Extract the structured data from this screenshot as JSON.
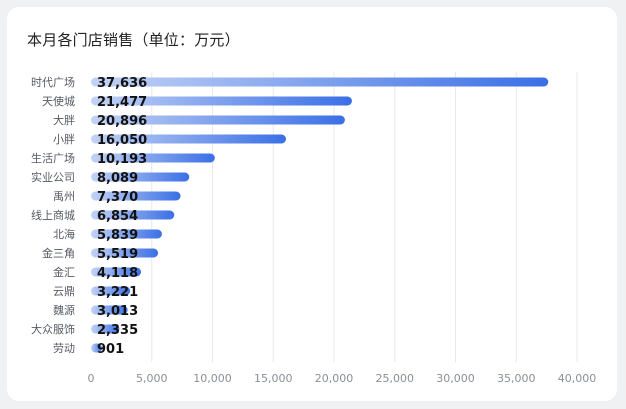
{
  "title": "本月各门店销售（单位：万元）",
  "chart_data": {
    "type": "bar",
    "orientation": "horizontal",
    "title": "本月各门店销售（单位：万元）",
    "xlabel": "",
    "ylabel": "",
    "xlim": [
      0,
      40000
    ],
    "x_ticks": [
      "0",
      "5,000",
      "10,000",
      "15,000",
      "20,000",
      "25,000",
      "30,000",
      "35,000",
      "40,000"
    ],
    "grid": "vertical",
    "legend": "none",
    "categories": [
      "时代广场",
      "天使城",
      "大胖",
      "小胖",
      "生活广场",
      "实业公司",
      "禹州",
      "线上商城",
      "北海",
      "金三角",
      "金汇",
      "云鼎",
      "魏源",
      "大众服饰",
      "劳动"
    ],
    "values": [
      37636,
      21477,
      20896,
      16050,
      10193,
      8089,
      7370,
      6854,
      5839,
      5519,
      4118,
      3221,
      3013,
      2335,
      901
    ],
    "value_labels": [
      "37,636",
      "21,477",
      "20,896",
      "16,050",
      "10,193",
      "8,089",
      "7,370",
      "6,854",
      "5,839",
      "5,519",
      "4,118",
      "3,221",
      "3,013",
      "2,335",
      "901"
    ],
    "colors": {
      "bar_start": "#c3d3f5",
      "bar_end": "#3a6fe6",
      "grid": "#e6e8ec"
    }
  }
}
